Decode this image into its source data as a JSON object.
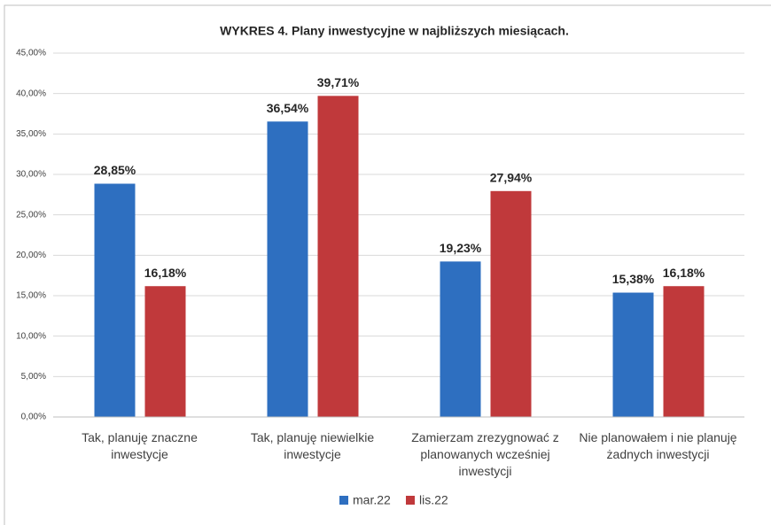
{
  "chart_data": {
    "type": "bar",
    "title": "WYKRES 4. Plany inwestycyjne w najbliższych miesiącach.",
    "categories": [
      "Tak, planuję znaczne inwestycje",
      "Tak, planuję niewielkie inwestycje",
      "Zamierzam zrezygnować z planowanych wcześniej inwestycji",
      "Nie planowałem i nie planuję żadnych inwestycji"
    ],
    "series": [
      {
        "name": "mar.22",
        "color": "#2e6fc0",
        "values": [
          28.85,
          36.54,
          19.23,
          15.38
        ],
        "value_labels": [
          "28,85%",
          "36,54%",
          "19,23%",
          "15,38%"
        ]
      },
      {
        "name": "lis.22",
        "color": "#c0393b",
        "values": [
          16.18,
          39.71,
          27.94,
          16.18
        ],
        "value_labels": [
          "16,18%",
          "39,71%",
          "27,94%",
          "16,18%"
        ]
      }
    ],
    "ylim": [
      0,
      45
    ],
    "yticks": [
      {
        "value": 0,
        "label": "0,00%"
      },
      {
        "value": 5,
        "label": "5,00%"
      },
      {
        "value": 10,
        "label": "10,00%"
      },
      {
        "value": 15,
        "label": "15,00%"
      },
      {
        "value": 20,
        "label": "20,00%"
      },
      {
        "value": 25,
        "label": "25,00%"
      },
      {
        "value": 30,
        "label": "30,00%"
      },
      {
        "value": 35,
        "label": "35,00%"
      },
      {
        "value": 40,
        "label": "40,00%"
      },
      {
        "value": 45,
        "label": "45,00%"
      }
    ],
    "grid": true,
    "legend": "bottom"
  }
}
